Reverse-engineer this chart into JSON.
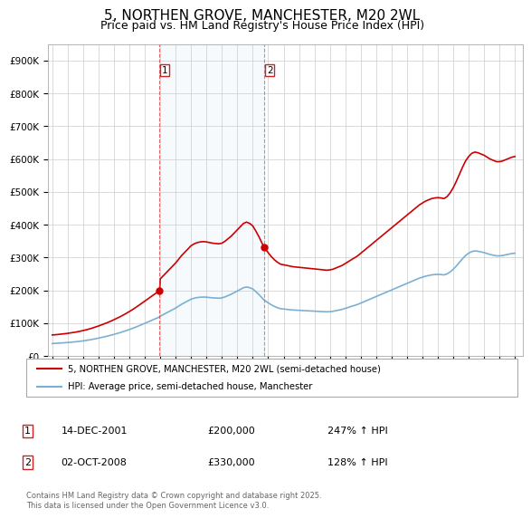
{
  "title": "5, NORTHEN GROVE, MANCHESTER, M20 2WL",
  "subtitle": "Price paid vs. HM Land Registry's House Price Index (HPI)",
  "title_fontsize": 11,
  "subtitle_fontsize": 9,
  "background_color": "#ffffff",
  "grid_color": "#cccccc",
  "line1_color": "#cc0000",
  "line2_color": "#7bafd4",
  "sale1_year": 2001.96,
  "sale2_year": 2008.75,
  "sale1_price": 200000,
  "sale2_price": 330000,
  "sale1_label": "14-DEC-2001",
  "sale2_label": "02-OCT-2008",
  "sale1_pct": "247% ↑ HPI",
  "sale2_pct": "128% ↑ HPI",
  "legend1": "5, NORTHEN GROVE, MANCHESTER, M20 2WL (semi-detached house)",
  "legend2": "HPI: Average price, semi-detached house, Manchester",
  "footer": "Contains HM Land Registry data © Crown copyright and database right 2025.\nThis data is licensed under the Open Government Licence v3.0.",
  "ylim": [
    0,
    950000
  ],
  "yticks": [
    0,
    100000,
    200000,
    300000,
    400000,
    500000,
    600000,
    700000,
    800000,
    900000
  ],
  "ytick_labels": [
    "£0",
    "£100K",
    "£200K",
    "£300K",
    "£400K",
    "£500K",
    "£600K",
    "£700K",
    "£800K",
    "£900K"
  ],
  "xlim_min": 1994.7,
  "xlim_max": 2025.5,
  "hpi_years": [
    1995.0,
    1995.1,
    1995.2,
    1995.3,
    1995.4,
    1995.5,
    1995.6,
    1995.7,
    1995.8,
    1995.9,
    1996.0,
    1996.1,
    1996.2,
    1996.3,
    1996.4,
    1996.5,
    1996.6,
    1996.7,
    1996.8,
    1996.9,
    1997.0,
    1997.1,
    1997.2,
    1997.3,
    1997.4,
    1997.5,
    1997.6,
    1997.7,
    1997.8,
    1997.9,
    1998.0,
    1998.1,
    1998.2,
    1998.3,
    1998.4,
    1998.5,
    1998.6,
    1998.7,
    1998.8,
    1998.9,
    1999.0,
    1999.1,
    1999.2,
    1999.3,
    1999.4,
    1999.5,
    1999.6,
    1999.7,
    1999.8,
    1999.9,
    2000.0,
    2000.1,
    2000.2,
    2000.3,
    2000.4,
    2000.5,
    2000.6,
    2000.7,
    2000.8,
    2000.9,
    2001.0,
    2001.1,
    2001.2,
    2001.3,
    2001.4,
    2001.5,
    2001.6,
    2001.7,
    2001.8,
    2001.9,
    2001.96,
    2002.0,
    2002.2,
    2002.4,
    2002.6,
    2002.8,
    2003.0,
    2003.2,
    2003.4,
    2003.6,
    2003.8,
    2004.0,
    2004.2,
    2004.4,
    2004.6,
    2004.8,
    2005.0,
    2005.2,
    2005.4,
    2005.6,
    2005.8,
    2006.0,
    2006.2,
    2006.4,
    2006.6,
    2006.8,
    2007.0,
    2007.2,
    2007.4,
    2007.6,
    2007.8,
    2008.0,
    2008.2,
    2008.4,
    2008.6,
    2008.75,
    2009.0,
    2009.2,
    2009.4,
    2009.6,
    2009.8,
    2010.0,
    2010.2,
    2010.4,
    2010.6,
    2010.8,
    2011.0,
    2011.2,
    2011.4,
    2011.6,
    2011.8,
    2012.0,
    2012.2,
    2012.4,
    2012.6,
    2012.8,
    2013.0,
    2013.2,
    2013.4,
    2013.6,
    2013.8,
    2014.0,
    2014.2,
    2014.4,
    2014.6,
    2014.8,
    2015.0,
    2015.2,
    2015.4,
    2015.6,
    2015.8,
    2016.0,
    2016.2,
    2016.4,
    2016.6,
    2016.8,
    2017.0,
    2017.2,
    2017.4,
    2017.6,
    2017.8,
    2018.0,
    2018.2,
    2018.4,
    2018.6,
    2018.8,
    2019.0,
    2019.2,
    2019.4,
    2019.6,
    2019.8,
    2020.0,
    2020.2,
    2020.4,
    2020.6,
    2020.8,
    2021.0,
    2021.2,
    2021.4,
    2021.6,
    2021.8,
    2022.0,
    2022.2,
    2022.4,
    2022.6,
    2022.8,
    2023.0,
    2023.2,
    2023.4,
    2023.6,
    2023.8,
    2024.0,
    2024.2,
    2024.4,
    2024.6,
    2024.8,
    2025.0
  ],
  "hpi_vals": [
    38000,
    38200,
    38500,
    38700,
    39000,
    39300,
    39600,
    40000,
    40300,
    40600,
    41000,
    41400,
    41800,
    42200,
    42700,
    43200,
    43700,
    44200,
    44800,
    45400,
    46000,
    46700,
    47400,
    48100,
    48900,
    49700,
    50600,
    51500,
    52400,
    53400,
    54400,
    55400,
    56400,
    57500,
    58600,
    59700,
    60800,
    62000,
    63200,
    64500,
    65800,
    67100,
    68400,
    69800,
    71200,
    72700,
    74200,
    75700,
    77300,
    78900,
    80600,
    82300,
    84000,
    85800,
    87700,
    89600,
    91500,
    93500,
    95500,
    97500,
    99500,
    101500,
    103500,
    105500,
    107500,
    109500,
    111500,
    113500,
    115500,
    117500,
    119000,
    121000,
    126000,
    131000,
    136000,
    141000,
    146000,
    152000,
    158000,
    163000,
    168000,
    173000,
    176000,
    178000,
    179000,
    179500,
    179000,
    178000,
    177000,
    176500,
    176000,
    177000,
    180000,
    184000,
    188000,
    193000,
    198000,
    203000,
    208000,
    210000,
    208000,
    204000,
    196000,
    187000,
    177000,
    170000,
    162000,
    156000,
    151000,
    147000,
    144000,
    143000,
    142000,
    141000,
    140000,
    139500,
    139000,
    138500,
    138000,
    137500,
    137000,
    136500,
    136000,
    135500,
    135000,
    134500,
    135000,
    136000,
    138000,
    140000,
    142000,
    145000,
    148000,
    151000,
    154000,
    157000,
    161000,
    165000,
    169000,
    173000,
    177000,
    181000,
    185000,
    189000,
    193000,
    197000,
    201000,
    205000,
    209000,
    213000,
    217000,
    221000,
    225000,
    229000,
    233000,
    237000,
    240000,
    243000,
    245000,
    247000,
    248000,
    248500,
    248000,
    247000,
    250000,
    256000,
    264000,
    274000,
    285000,
    296000,
    306000,
    313000,
    318000,
    320000,
    319000,
    317000,
    315000,
    312000,
    309000,
    307000,
    305000,
    305000,
    306000,
    308000,
    310000,
    312000,
    313000
  ]
}
